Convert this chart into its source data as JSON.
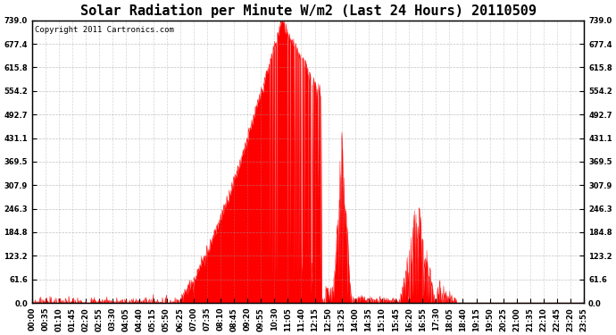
{
  "title": "Solar Radiation per Minute W/m2 (Last 24 Hours) 20110509",
  "copyright": "Copyright 2011 Cartronics.com",
  "ymax": 739.0,
  "yticks": [
    0.0,
    61.6,
    123.2,
    184.8,
    246.3,
    307.9,
    369.5,
    431.1,
    492.7,
    554.2,
    615.8,
    677.4,
    739.0
  ],
  "fill_color": "#FF0000",
  "bg_color": "#FFFFFF",
  "plot_bg_color": "#FFFFFF",
  "grid_color": "#999999",
  "dashed_line_color": "#FF0000",
  "title_fontsize": 11,
  "copyright_fontsize": 6.5,
  "tick_fontsize": 6,
  "n_points": 1440,
  "xtick_labels": [
    "00:00",
    "00:35",
    "01:10",
    "01:45",
    "02:20",
    "02:55",
    "03:30",
    "04:05",
    "04:40",
    "05:15",
    "05:50",
    "06:25",
    "07:00",
    "07:35",
    "08:10",
    "08:45",
    "09:20",
    "09:55",
    "10:30",
    "11:05",
    "11:40",
    "12:15",
    "12:50",
    "13:25",
    "14:00",
    "14:35",
    "15:10",
    "15:45",
    "16:20",
    "16:55",
    "17:30",
    "18:05",
    "18:40",
    "19:15",
    "19:50",
    "20:25",
    "21:00",
    "21:35",
    "22:10",
    "22:45",
    "23:20",
    "23:55"
  ]
}
